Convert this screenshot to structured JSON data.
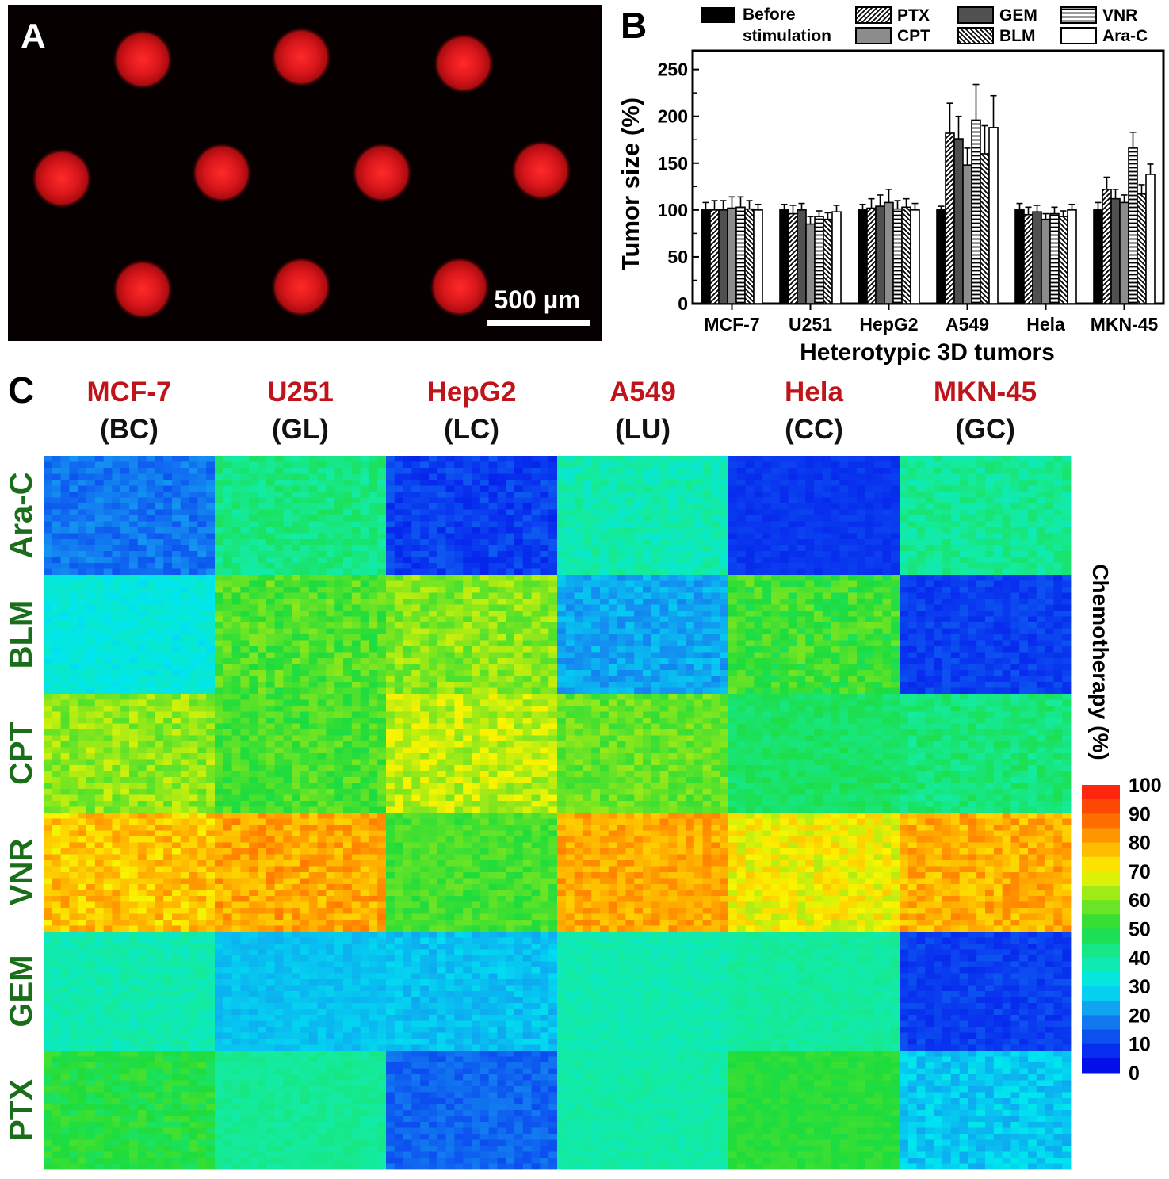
{
  "panel_a": {
    "label": "A",
    "scale_bar_label": "500 µm",
    "image_description_colors": {
      "background": "#060000",
      "spheroid": "#e0141a"
    }
  },
  "panel_b": {
    "label": "B",
    "legend": [
      "Before stimulation",
      "PTX",
      "CPT",
      "GEM",
      "BLM",
      "VNR",
      "Ara-C"
    ],
    "legend_lines": {
      "before_line1": "Before",
      "before_line2": "stimulation"
    },
    "ylabel": "Tumor size (%)",
    "xlabel": "Heterotypic 3D tumors",
    "yticks": [
      "0",
      "50",
      "100",
      "150",
      "200",
      "250"
    ]
  },
  "panel_c": {
    "label": "C",
    "column_headers": [
      {
        "name": "MCF-7",
        "abbr": "(BC)"
      },
      {
        "name": "U251",
        "abbr": "(GL)"
      },
      {
        "name": "HepG2",
        "abbr": "(LC)"
      },
      {
        "name": "A549",
        "abbr": "(LU)"
      },
      {
        "name": "Hela",
        "abbr": "(CC)"
      },
      {
        "name": "MKN-45",
        "abbr": "(GC)"
      }
    ],
    "row_labels": [
      "Ara-C",
      "BLM",
      "CPT",
      "VNR",
      "GEM",
      "PTX"
    ],
    "colorbar_label": "Chemotherapy (%)",
    "colorbar_ticks": [
      "100",
      "90",
      "80",
      "70",
      "60",
      "50",
      "40",
      "30",
      "20",
      "10",
      "0"
    ],
    "header_color": "#c0141a",
    "row_label_color": "#1a6e1a"
  },
  "chart_data": [
    {
      "type": "bar",
      "title": "",
      "xlabel": "Heterotypic 3D tumors",
      "ylabel": "Tumor size (%)",
      "ylim": [
        0,
        270
      ],
      "categories": [
        "MCF-7",
        "U251",
        "HepG2",
        "A549",
        "Hela",
        "MKN-45"
      ],
      "series": [
        {
          "name": "Before stimulation",
          "values": [
            100,
            100,
            100,
            100,
            100,
            100
          ],
          "errors": [
            8,
            6,
            6,
            4,
            7,
            8
          ]
        },
        {
          "name": "PTX",
          "values": [
            100,
            96,
            102,
            182,
            95,
            122
          ],
          "errors": [
            10,
            9,
            10,
            32,
            8,
            13
          ]
        },
        {
          "name": "GEM",
          "values": [
            100,
            100,
            104,
            176,
            98,
            112
          ],
          "errors": [
            10,
            7,
            12,
            24,
            7,
            10
          ]
        },
        {
          "name": "CPT",
          "values": [
            102,
            85,
            108,
            148,
            90,
            108
          ],
          "errors": [
            12,
            8,
            14,
            18,
            6,
            8
          ]
        },
        {
          "name": "VNR",
          "values": [
            103,
            93,
            101,
            196,
            96,
            166
          ],
          "errors": [
            11,
            6,
            9,
            38,
            7,
            17
          ]
        },
        {
          "name": "BLM",
          "values": [
            101,
            90,
            103,
            160,
            93,
            117
          ],
          "errors": [
            9,
            7,
            9,
            30,
            6,
            10
          ]
        },
        {
          "name": "Ara-C",
          "values": [
            100,
            98,
            100,
            188,
            100,
            138
          ],
          "errors": [
            6,
            7,
            7,
            34,
            6,
            11
          ]
        }
      ],
      "error_bars": true,
      "legend_position": "top"
    },
    {
      "type": "heatmap",
      "xlabel": "",
      "ylabel": "",
      "columns": [
        "MCF-7",
        "U251",
        "HepG2",
        "A549",
        "Hela",
        "MKN-45"
      ],
      "rows": [
        "Ara-C",
        "BLM",
        "CPT",
        "VNR",
        "GEM",
        "PTX"
      ],
      "cells_per_block": 20,
      "value_range": [
        0,
        100
      ],
      "colorbar_label": "Chemotherapy (%)",
      "block_mean_values": [
        [
          17,
          43,
          10,
          38,
          9,
          41
        ],
        [
          32,
          55,
          60,
          23,
          53,
          10
        ],
        [
          61,
          54,
          65,
          57,
          46,
          44
        ],
        [
          76,
          80,
          54,
          80,
          70,
          79
        ],
        [
          38,
          26,
          26,
          38,
          40,
          10
        ],
        [
          50,
          41,
          15,
          39,
          51,
          27
        ]
      ],
      "block_variation": [
        [
          4,
          4,
          4,
          4,
          2,
          4
        ],
        [
          3,
          6,
          6,
          4,
          6,
          3
        ],
        [
          6,
          5,
          6,
          5,
          3,
          4
        ],
        [
          7,
          6,
          4,
          5,
          6,
          6
        ],
        [
          3,
          2,
          3,
          2,
          2,
          3
        ],
        [
          4,
          2,
          3,
          2,
          2,
          4
        ]
      ]
    }
  ]
}
